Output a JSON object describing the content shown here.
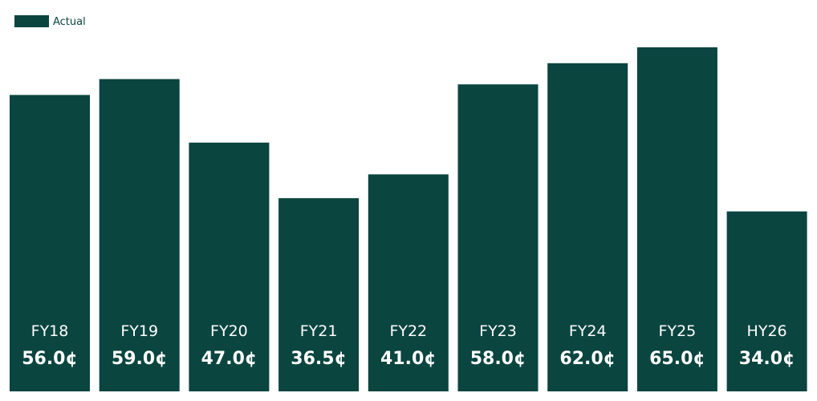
{
  "chart_data": {
    "type": "bar",
    "categories": [
      "FY18",
      "FY19",
      "FY20",
      "FY21",
      "FY22",
      "FY23",
      "FY24",
      "FY25",
      "HY26"
    ],
    "series": [
      {
        "name": "Actual",
        "values": [
          56.0,
          59.0,
          47.0,
          36.5,
          41.0,
          58.0,
          62.0,
          65.0,
          34.0
        ]
      }
    ],
    "value_labels": [
      "56.0¢",
      "59.0¢",
      "47.0¢",
      "36.5¢",
      "41.0¢",
      "58.0¢",
      "62.0¢",
      "65.0¢",
      "34.0¢"
    ],
    "ylim": [
      0,
      65
    ],
    "legend_position": "top-left",
    "grid": false,
    "colors": {
      "bar": "#0B4540",
      "legend_text": "#0B4540",
      "label": "#ffffff"
    }
  }
}
